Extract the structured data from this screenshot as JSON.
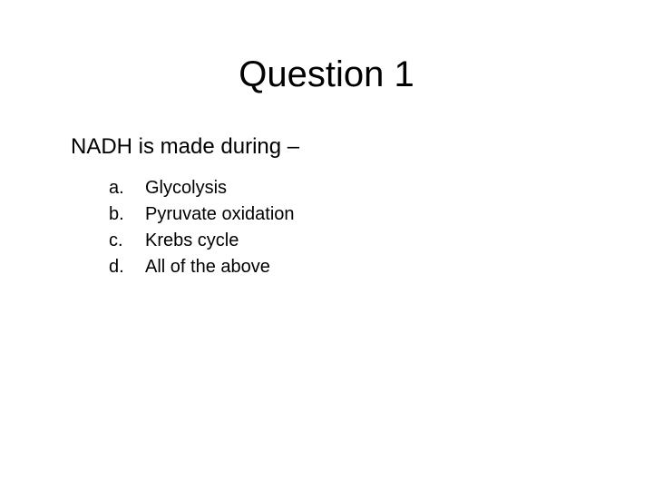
{
  "title": "Question 1",
  "stem": "NADH is made during –",
  "options": [
    {
      "letter": "a.",
      "text": "Glycolysis"
    },
    {
      "letter": "b.",
      "text": "Pyruvate oxidation"
    },
    {
      "letter": "c.",
      "text": "Krebs cycle"
    },
    {
      "letter": "d.",
      "text": "All of the above"
    }
  ],
  "colors": {
    "background": "#ffffff",
    "text": "#000000"
  },
  "typography": {
    "title_fontsize": 40,
    "stem_fontsize": 24,
    "option_fontsize": 20,
    "font_family": "Arial"
  }
}
